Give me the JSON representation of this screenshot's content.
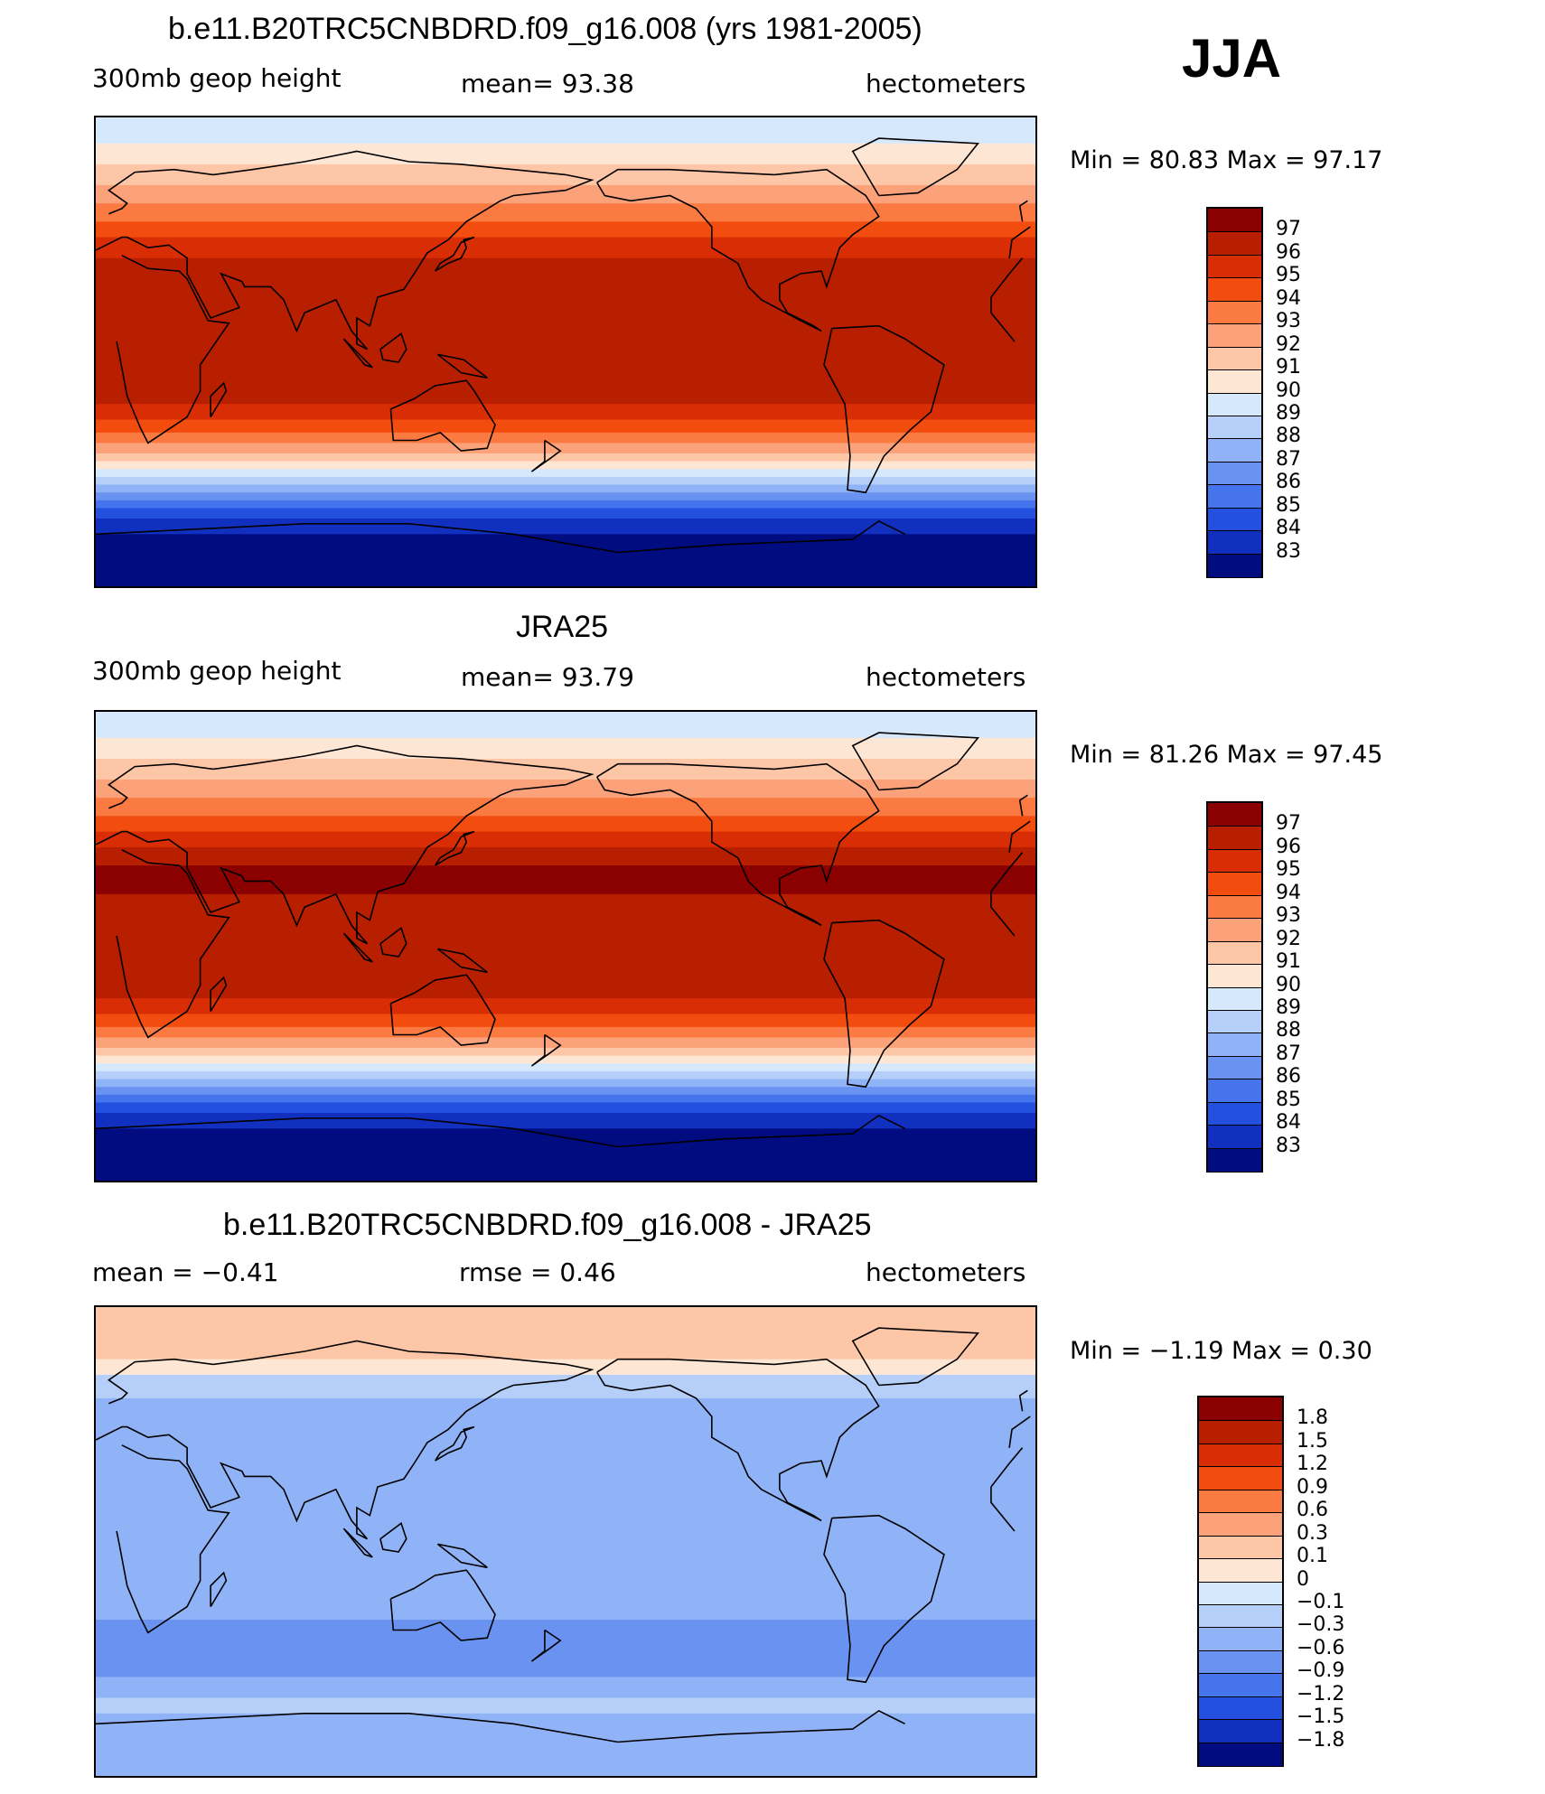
{
  "season": "JJA",
  "panels": [
    {
      "title": "b.e11.B20TRC5CNBDRD.f09_g16.008 (yrs 1981-2005)",
      "left_label": "300mb  geop  height",
      "center_label": "mean=   93.38",
      "right_label": "hectometers",
      "minmax": "Min  =   80.83  Max  =   97.17",
      "colorbar": {
        "labels": [
          "97",
          "96",
          "95",
          "94",
          "93",
          "92",
          "91",
          "90",
          "89",
          "88",
          "87",
          "86",
          "85",
          "84",
          "83"
        ],
        "colors": [
          "#8b0000",
          "#b81e00",
          "#d92e05",
          "#f24c0f",
          "#fb7a42",
          "#fca27a",
          "#fdc6a6",
          "#fee6d5",
          "#d6e8fb",
          "#b5cff8",
          "#8fb3f6",
          "#6a93f1",
          "#4574ec",
          "#2450df",
          "#1230c0",
          "#000c80"
        ]
      },
      "map_bands": [
        {
          "lat": 90,
          "color": "#d6e8fb"
        },
        {
          "lat": 80,
          "color": "#fee6d5"
        },
        {
          "lat": 72,
          "color": "#fdc6a6"
        },
        {
          "lat": 64,
          "color": "#fca27a"
        },
        {
          "lat": 57,
          "color": "#fb7a42"
        },
        {
          "lat": 50,
          "color": "#f24c0f"
        },
        {
          "lat": 44,
          "color": "#d92e05"
        },
        {
          "lat": 36,
          "color": "#b81e00"
        },
        {
          "lat": -20,
          "color": "#d92e05"
        },
        {
          "lat": -26,
          "color": "#f24c0f"
        },
        {
          "lat": -31,
          "color": "#fb7a42"
        },
        {
          "lat": -35,
          "color": "#fca27a"
        },
        {
          "lat": -39,
          "color": "#fdc6a6"
        },
        {
          "lat": -42,
          "color": "#fee6d5"
        },
        {
          "lat": -45,
          "color": "#d6e8fb"
        },
        {
          "lat": -48,
          "color": "#b5cff8"
        },
        {
          "lat": -51,
          "color": "#8fb3f6"
        },
        {
          "lat": -54,
          "color": "#6a93f1"
        },
        {
          "lat": -57,
          "color": "#4574ec"
        },
        {
          "lat": -60,
          "color": "#2450df"
        },
        {
          "lat": -64,
          "color": "#1230c0"
        },
        {
          "lat": -70,
          "color": "#000c80"
        }
      ]
    },
    {
      "title": "JRA25",
      "left_label": "300mb  geop  height",
      "center_label": "mean=   93.79",
      "right_label": "hectometers",
      "minmax": "Min  =   81.26  Max  =   97.45",
      "colorbar": {
        "labels": [
          "97",
          "96",
          "95",
          "94",
          "93",
          "92",
          "91",
          "90",
          "89",
          "88",
          "87",
          "86",
          "85",
          "84",
          "83"
        ],
        "colors": [
          "#8b0000",
          "#b81e00",
          "#d92e05",
          "#f24c0f",
          "#fb7a42",
          "#fca27a",
          "#fdc6a6",
          "#fee6d5",
          "#d6e8fb",
          "#b5cff8",
          "#8fb3f6",
          "#6a93f1",
          "#4574ec",
          "#2450df",
          "#1230c0",
          "#000c80"
        ]
      },
      "map_bands": [
        {
          "lat": 90,
          "color": "#d6e8fb"
        },
        {
          "lat": 80,
          "color": "#fee6d5"
        },
        {
          "lat": 72,
          "color": "#fdc6a6"
        },
        {
          "lat": 64,
          "color": "#fca27a"
        },
        {
          "lat": 57,
          "color": "#fb7a42"
        },
        {
          "lat": 50,
          "color": "#f24c0f"
        },
        {
          "lat": 44,
          "color": "#d92e05"
        },
        {
          "lat": 38,
          "color": "#b81e00"
        },
        {
          "lat": 31,
          "color": "#8b0000"
        },
        {
          "lat": 20,
          "color": "#b81e00"
        },
        {
          "lat": -20,
          "color": "#d92e05"
        },
        {
          "lat": -26,
          "color": "#f24c0f"
        },
        {
          "lat": -31,
          "color": "#fb7a42"
        },
        {
          "lat": -35,
          "color": "#fca27a"
        },
        {
          "lat": -39,
          "color": "#fdc6a6"
        },
        {
          "lat": -42,
          "color": "#fee6d5"
        },
        {
          "lat": -45,
          "color": "#d6e8fb"
        },
        {
          "lat": -48,
          "color": "#b5cff8"
        },
        {
          "lat": -51,
          "color": "#8fb3f6"
        },
        {
          "lat": -54,
          "color": "#6a93f1"
        },
        {
          "lat": -57,
          "color": "#4574ec"
        },
        {
          "lat": -60,
          "color": "#2450df"
        },
        {
          "lat": -64,
          "color": "#1230c0"
        },
        {
          "lat": -70,
          "color": "#000c80"
        }
      ]
    },
    {
      "title": "b.e11.B20TRC5CNBDRD.f09_g16.008 - JRA25",
      "left_label": "mean  =    −0.41",
      "center_label": "rmse  =     0.46",
      "right_label": "hectometers",
      "minmax": "Min  =   −1.19  Max  =     0.30",
      "colorbar": {
        "labels": [
          "1.8",
          "1.5",
          "1.2",
          "0.9",
          "0.6",
          "0.3",
          "0.1",
          "0",
          "−0.1",
          "−0.3",
          "−0.6",
          "−0.9",
          "−1.2",
          "−1.5",
          "−1.8"
        ],
        "colors": [
          "#8b0000",
          "#b81e00",
          "#d92e05",
          "#f24c0f",
          "#fb7a42",
          "#fca27a",
          "#fdc6a6",
          "#fee6d5",
          "#d6e8fb",
          "#b5cff8",
          "#8fb3f6",
          "#6a93f1",
          "#4574ec",
          "#2450df",
          "#1230c0",
          "#000c80"
        ]
      },
      "map_bands": [
        {
          "lat": 90,
          "color": "#fdc6a6"
        },
        {
          "lat": 70,
          "color": "#fee6d5"
        },
        {
          "lat": 64,
          "color": "#b5cff8"
        },
        {
          "lat": 55,
          "color": "#8fb3f6"
        },
        {
          "lat": 20,
          "color": "#8fb3f6"
        },
        {
          "lat": -30,
          "color": "#6a93f1"
        },
        {
          "lat": -52,
          "color": "#8fb3f6"
        },
        {
          "lat": -60,
          "color": "#b5cff8"
        },
        {
          "lat": -66,
          "color": "#8fb3f6"
        }
      ]
    }
  ]
}
